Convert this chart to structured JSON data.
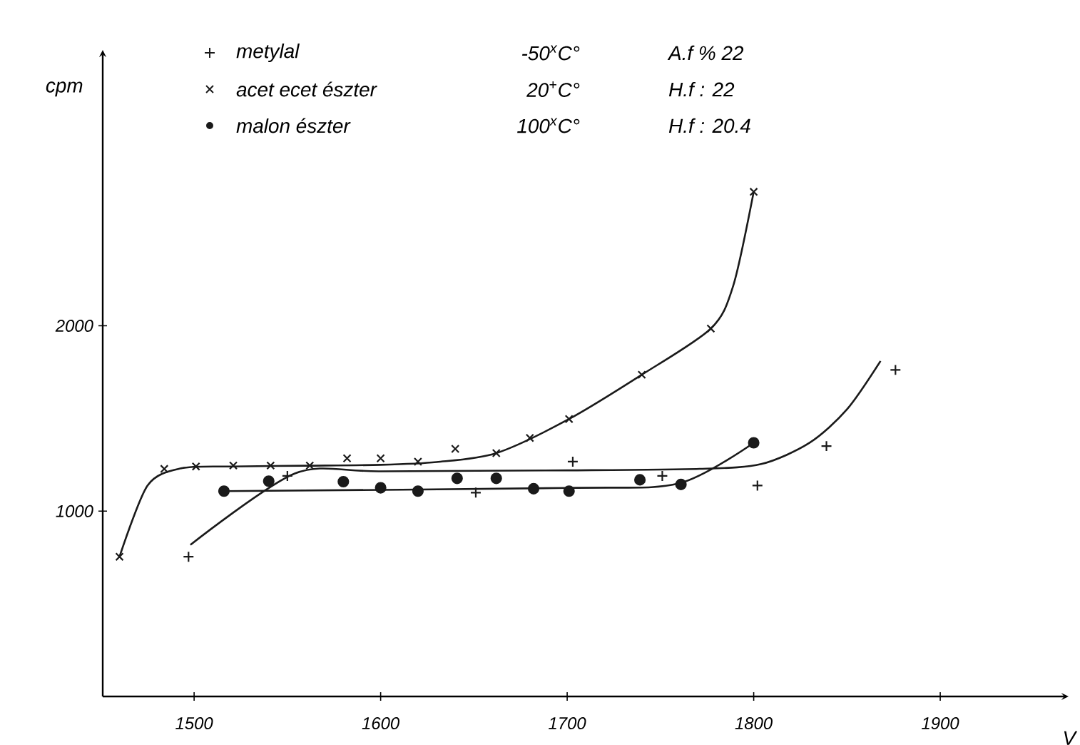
{
  "chart_data": {
    "type": "scatter",
    "ylabel": "cpm",
    "xlabel": "V",
    "xlim": [
      1451,
      1965
    ],
    "ylim": [
      0,
      3450
    ],
    "xticks": [
      1500,
      1600,
      1700,
      1800,
      1900
    ],
    "yticks": [
      1000,
      2000
    ],
    "legend": "top",
    "annotations": [
      "-50$^{x}$C°",
      "20$^{+}$C°",
      "100$^{x}$C°",
      "A.f % 22",
      "H.f : 22",
      "H.f : 20.4"
    ],
    "series": [
      {
        "name": "metylal",
        "marker": "plus",
        "color": "#1a1a1a",
        "x": [
          1497,
          1550,
          1651,
          1703,
          1751,
          1802,
          1839,
          1876
        ],
        "values": [
          754,
          1190,
          1100,
          1267,
          1190,
          1138,
          1351,
          1762
        ]
      },
      {
        "name": "acet ecet észter",
        "marker": "cross",
        "color": "#1a1a1a",
        "x": [
          1460,
          1484,
          1501,
          1521,
          1541,
          1562,
          1582,
          1600,
          1620,
          1640,
          1662,
          1680,
          1701,
          1740,
          1777,
          1800
        ],
        "values": [
          754,
          1228,
          1241,
          1246,
          1246,
          1246,
          1285,
          1285,
          1267,
          1336,
          1313,
          1395,
          1497,
          1736,
          1985,
          2723
        ]
      },
      {
        "name": "malon észter",
        "marker": "circle",
        "color": "#1a1a1a",
        "x": [
          1516,
          1540,
          1580,
          1600,
          1620,
          1641,
          1662,
          1682,
          1701,
          1739,
          1761,
          1800
        ],
        "values": [
          1108,
          1162,
          1159,
          1126,
          1108,
          1177,
          1177,
          1121,
          1108,
          1169,
          1144,
          1369
        ]
      },
      {
        "type": "line",
        "marker": "none",
        "color": "#1a1a1a",
        "x": [
          1498,
          1554,
          1600,
          1700,
          1771,
          1804,
          1830,
          1850,
          1868
        ],
        "values": [
          818,
          1203,
          1215,
          1220,
          1228,
          1254,
          1369,
          1549,
          1810
        ]
      },
      {
        "type": "line",
        "marker": "none",
        "color": "#1a1a1a",
        "x": [
          1460,
          1475,
          1493,
          1520,
          1560,
          1600,
          1630,
          1662,
          1701,
          1740,
          1777,
          1789,
          1800
        ],
        "values": [
          754,
          1138,
          1231,
          1241,
          1245,
          1250,
          1265,
          1313,
          1497,
          1736,
          1985,
          2215,
          2723
        ]
      },
      {
        "type": "line",
        "marker": "none",
        "color": "#1a1a1a",
        "x": [
          1516,
          1700,
          1760,
          1800
        ],
        "values": [
          1108,
          1125,
          1150,
          1369
        ]
      }
    ]
  }
}
